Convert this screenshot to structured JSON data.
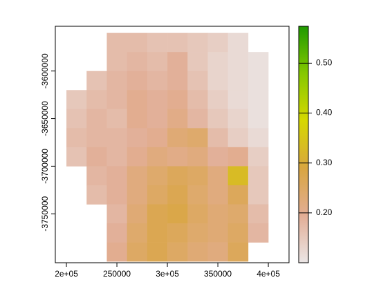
{
  "chart_data": {
    "type": "raster",
    "x": [
      210000,
      230000,
      250000,
      270000,
      290000,
      310000,
      330000,
      350000,
      370000,
      390000
    ],
    "y": [
      -3570000,
      -3590000,
      -3610000,
      -3630000,
      -3650000,
      -3670000,
      -3690000,
      -3710000,
      -3730000,
      -3750000,
      -3770000,
      -3790000
    ],
    "values": [
      [
        null,
        null,
        0.17,
        0.17,
        0.16,
        0.16,
        0.15,
        0.14,
        0.12,
        null
      ],
      [
        null,
        null,
        0.17,
        0.18,
        0.17,
        0.19,
        0.15,
        0.13,
        0.12,
        0.11
      ],
      [
        null,
        0.16,
        0.18,
        0.19,
        0.18,
        0.19,
        0.16,
        0.13,
        0.12,
        0.11
      ],
      [
        0.15,
        0.17,
        0.18,
        0.2,
        0.19,
        0.2,
        0.17,
        0.14,
        0.12,
        0.11
      ],
      [
        0.16,
        0.18,
        0.17,
        0.2,
        0.19,
        0.21,
        0.18,
        0.15,
        0.13,
        0.11
      ],
      [
        0.17,
        0.18,
        0.18,
        0.19,
        0.2,
        0.23,
        0.24,
        0.17,
        0.14,
        0.12
      ],
      [
        0.16,
        0.19,
        0.18,
        0.2,
        0.22,
        0.21,
        0.22,
        0.19,
        0.2,
        0.14
      ],
      [
        null,
        0.18,
        0.19,
        0.22,
        0.24,
        0.26,
        0.25,
        0.22,
        0.33,
        0.15
      ],
      [
        null,
        0.17,
        0.19,
        0.22,
        0.25,
        0.27,
        0.24,
        0.22,
        0.26,
        0.15
      ],
      [
        null,
        null,
        0.18,
        0.23,
        0.27,
        0.28,
        0.25,
        0.23,
        0.24,
        0.17
      ],
      [
        null,
        null,
        0.19,
        0.24,
        0.27,
        0.26,
        0.24,
        0.23,
        0.25,
        0.18
      ],
      [
        null,
        null,
        0.2,
        0.25,
        0.27,
        0.25,
        0.23,
        0.22,
        0.26,
        null
      ]
    ],
    "xlim": [
      189000,
      420500
    ],
    "ylim": [
      -3801400,
      -3553000
    ],
    "xticks": [
      {
        "value": 200000,
        "label": "2e+05"
      },
      250000,
      {
        "value": 300000,
        "label": "3e+05"
      },
      350000,
      {
        "value": 400000,
        "label": "4e+05"
      }
    ],
    "yticks": [
      -3750000,
      -3700000,
      -3650000,
      -3600000
    ],
    "zlim": [
      0.1,
      0.574
    ],
    "zticks": [
      {
        "value": 0.2,
        "label": "0.20"
      },
      {
        "value": 0.3,
        "label": "0.30"
      },
      {
        "value": 0.4,
        "label": "0.40"
      },
      {
        "value": 0.5,
        "label": "0.50"
      }
    ],
    "colors": [
      "#ebe6e6",
      "#e2ad95",
      "#d9a640",
      "#d6d800",
      "#86c800",
      "#1f9a00"
    ]
  }
}
